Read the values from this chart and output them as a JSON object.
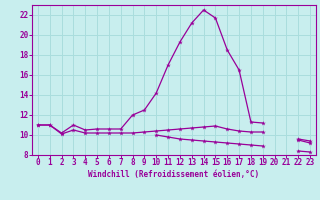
{
  "xlabel": "Windchill (Refroidissement éolien,°C)",
  "background_color": "#c8eeee",
  "grid_color": "#aadddd",
  "line_color": "#990099",
  "xlim": [
    -0.5,
    23.5
  ],
  "ylim": [
    8,
    23
  ],
  "xticks": [
    0,
    1,
    2,
    3,
    4,
    5,
    6,
    7,
    8,
    9,
    10,
    11,
    12,
    13,
    14,
    15,
    16,
    17,
    18,
    19,
    20,
    21,
    22,
    23
  ],
  "yticks": [
    8,
    10,
    12,
    14,
    16,
    18,
    20,
    22
  ],
  "series": [
    {
      "x": [
        0,
        1,
        2,
        3,
        4,
        5,
        6,
        7,
        8,
        9,
        10,
        11,
        12,
        13,
        14,
        15,
        16,
        17,
        18,
        19,
        20,
        21,
        22,
        23
      ],
      "y": [
        11,
        11,
        10.2,
        11,
        10.5,
        10.6,
        10.6,
        10.6,
        12,
        12.5,
        14.2,
        17,
        19.3,
        21.2,
        22.5,
        21.7,
        18.5,
        16.5,
        11.3,
        11.2,
        null,
        null,
        9.5,
        9.2
      ]
    },
    {
      "x": [
        0,
        1,
        2,
        3,
        4,
        5,
        6,
        7,
        8,
        9,
        10,
        11,
        12,
        13,
        14,
        15,
        16,
        17,
        18,
        19,
        20,
        21,
        22,
        23
      ],
      "y": [
        11,
        11,
        10.1,
        10.5,
        10.2,
        10.2,
        10.2,
        10.2,
        10.2,
        10.3,
        10.4,
        10.5,
        10.6,
        10.7,
        10.8,
        10.9,
        10.6,
        10.4,
        10.3,
        10.3,
        null,
        null,
        9.6,
        9.4
      ]
    },
    {
      "x": [
        0,
        1,
        2,
        3,
        4,
        5,
        6,
        7,
        8,
        9,
        10,
        11,
        12,
        13,
        14,
        15,
        16,
        17,
        18,
        19,
        20,
        21,
        22,
        23
      ],
      "y": [
        null,
        null,
        null,
        null,
        null,
        null,
        null,
        null,
        null,
        null,
        10.0,
        9.8,
        9.6,
        9.5,
        9.4,
        9.3,
        9.2,
        9.1,
        9.0,
        8.9,
        null,
        null,
        8.4,
        8.3
      ]
    }
  ]
}
